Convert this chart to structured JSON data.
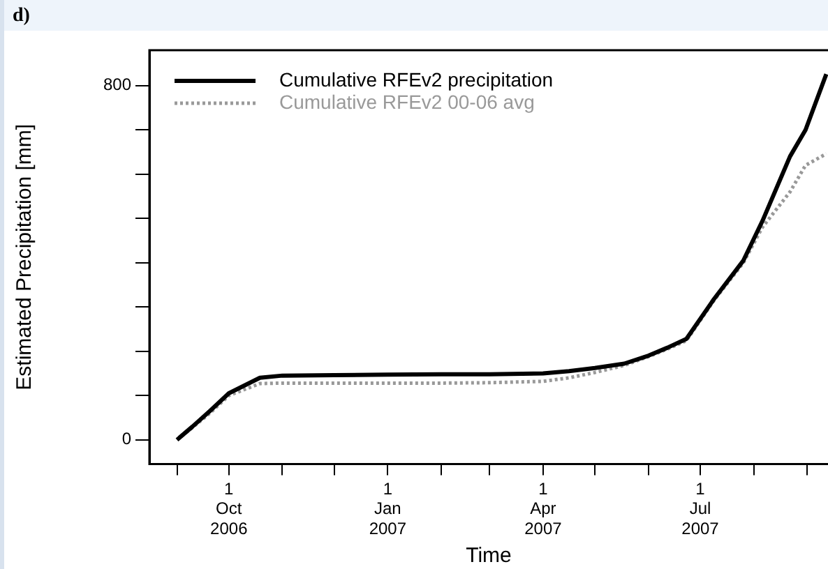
{
  "chart_data": {
    "type": "line",
    "title": "d)",
    "xlabel": "Time",
    "ylabel": "Estimated Precipitation [mm]",
    "xlim": [
      "2006-08-16",
      "2007-09-13"
    ],
    "xticks": [
      {
        "value": "2006-09-01",
        "label": null
      },
      {
        "value": "2006-10-01",
        "label": "1\nOct\n2006"
      },
      {
        "value": "2006-11-01",
        "label": null
      },
      {
        "value": "2006-12-01",
        "label": null
      },
      {
        "value": "2007-01-01",
        "label": "1\nJan\n2007"
      },
      {
        "value": "2007-02-01",
        "label": null
      },
      {
        "value": "2007-03-01",
        "label": null
      },
      {
        "value": "2007-04-01",
        "label": "1\nApr\n2007"
      },
      {
        "value": "2007-05-01",
        "label": null
      },
      {
        "value": "2007-06-01",
        "label": null
      },
      {
        "value": "2007-07-01",
        "label": "1\nJul\n2007"
      },
      {
        "value": "2007-08-01",
        "label": null
      },
      {
        "value": "2007-09-01",
        "label": null
      }
    ],
    "ylim": [
      -55,
      880
    ],
    "yticks": [
      0,
      {
        "value": 100,
        "label": null
      },
      {
        "value": 200,
        "label": null
      },
      {
        "value": 300,
        "label": null
      },
      {
        "value": 400,
        "label": null
      },
      {
        "value": 500,
        "label": null
      },
      {
        "value": 600,
        "label": null
      },
      {
        "value": 700,
        "label": null
      },
      800
    ],
    "grid": false,
    "legend": "top left",
    "marker": "none",
    "series": [
      {
        "name": "Cumulative RFEv2 precipitation",
        "color": "#000000",
        "line_style": "solid",
        "x": [
          "2006-09-01",
          "2006-09-10",
          "2006-09-20",
          "2006-10-01",
          "2006-10-19",
          "2006-11-01",
          "2006-12-01",
          "2007-01-01",
          "2007-02-01",
          "2007-03-01",
          "2007-04-01",
          "2007-04-16",
          "2007-05-01",
          "2007-05-18",
          "2007-06-01",
          "2007-06-12",
          "2007-06-23",
          "2007-07-09",
          "2007-07-26",
          "2007-08-06",
          "2007-08-22",
          "2007-08-31",
          "2007-09-12"
        ],
        "values": [
          0,
          30,
          65,
          105,
          140,
          145,
          146,
          147,
          148,
          148,
          150,
          155,
          162,
          172,
          190,
          208,
          228,
          318,
          405,
          494,
          640,
          700,
          826
        ]
      },
      {
        "name": "Cumulative RFEv2 00-06 avg",
        "color": "#999999",
        "line_style": "dotted",
        "x": [
          "2006-09-01",
          "2006-09-10",
          "2006-09-20",
          "2006-10-01",
          "2006-10-19",
          "2006-11-01",
          "2006-12-01",
          "2007-01-01",
          "2007-02-01",
          "2007-03-01",
          "2007-04-01",
          "2007-04-16",
          "2007-05-01",
          "2007-05-18",
          "2007-06-01",
          "2007-06-12",
          "2007-06-23",
          "2007-07-09",
          "2007-07-26",
          "2007-08-06",
          "2007-08-22",
          "2007-08-31",
          "2007-09-12"
        ],
        "values": [
          0,
          28,
          60,
          100,
          127,
          128,
          128,
          128,
          128,
          129,
          132,
          140,
          152,
          168,
          188,
          205,
          224,
          315,
          400,
          480,
          560,
          620,
          646
        ]
      }
    ]
  }
}
